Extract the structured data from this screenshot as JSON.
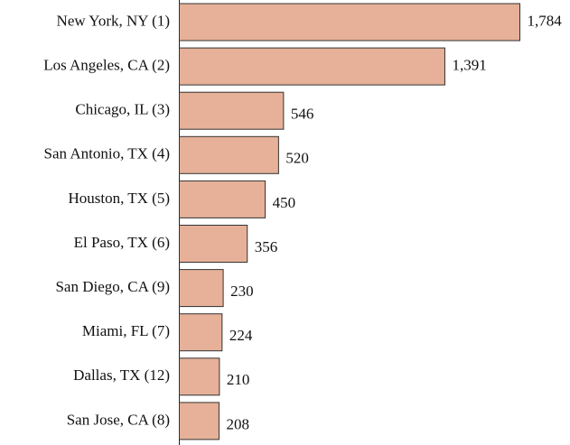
{
  "chart_data": {
    "type": "bar",
    "orientation": "horizontal",
    "categories": [
      "New York, NY (1)",
      "Los Angeles, CA (2)",
      "Chicago, IL (3)",
      "San Antonio, TX (4)",
      "Houston, TX (5)",
      "El Paso, TX (6)",
      "San Diego, CA (9)",
      "Miami, FL (7)",
      "Dallas, TX (12)",
      "San Jose, CA (8)"
    ],
    "values": [
      1784,
      1391,
      546,
      520,
      450,
      356,
      230,
      224,
      210,
      208
    ],
    "value_labels": [
      "1,784",
      "1,391",
      "546",
      "520",
      "450",
      "356",
      "230",
      "224",
      "210",
      "208"
    ],
    "color": "#e6b198"
  }
}
